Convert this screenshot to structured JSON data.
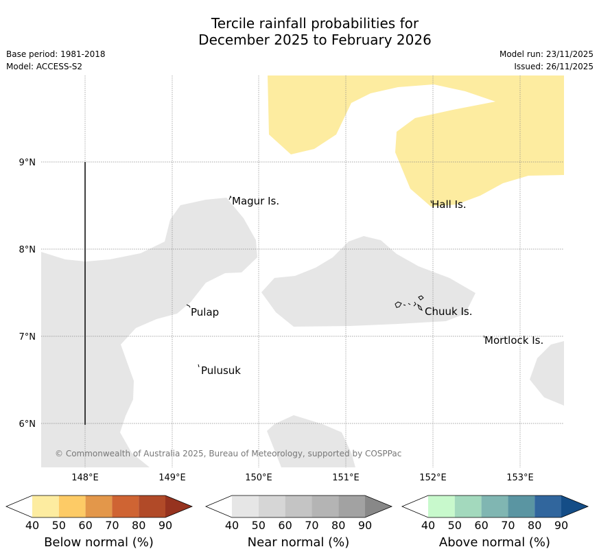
{
  "title_line1": "Tercile rainfall probabilities for",
  "title_line2": "December 2025 to February 2026",
  "base_period": "Base period: 1981-2018",
  "model": "Model: ACCESS-S2",
  "model_run": "Model run: 23/11/2025",
  "issued": "Issued: 26/11/2025",
  "copyright": "© Commonwealth of Australia 2025, Bureau of Meteorology, supported by COSPPac",
  "lat_labels": [
    "9°N",
    "8°N",
    "7°N",
    "6°N"
  ],
  "lon_labels": [
    "148°E",
    "149°E",
    "150°E",
    "151°E",
    "152°E",
    "153°E"
  ],
  "places": [
    "Magur Is.",
    "Hall Is.",
    "Pulap",
    "Chuuk Is.",
    "Mortlock Is.",
    "Pulusuk"
  ],
  "colorbars": [
    {
      "title": "Below normal (%)",
      "ticks": [
        "40",
        "50",
        "60",
        "70",
        "80",
        "90"
      ],
      "colors": [
        "#fdeca0",
        "#fdcb66",
        "#e3974a",
        "#cf6433",
        "#b14a28",
        "#96331f"
      ]
    },
    {
      "title": "Near normal (%)",
      "ticks": [
        "40",
        "50",
        "60",
        "70",
        "80",
        "90"
      ],
      "colors": [
        "#e6e6e6",
        "#d6d6d6",
        "#c4c4c4",
        "#b4b4b4",
        "#a2a2a2",
        "#888888"
      ]
    },
    {
      "title": "Above normal (%)",
      "ticks": [
        "40",
        "50",
        "60",
        "70",
        "80",
        "90"
      ],
      "colors": [
        "#c8f9cc",
        "#a3d9bd",
        "#80b6b2",
        "#5a95a2",
        "#31669d",
        "#144d87"
      ]
    }
  ],
  "colors": {
    "below_fill": "#fdeca0",
    "near_fill": "#e6e6e6",
    "grid": "#888888"
  }
}
